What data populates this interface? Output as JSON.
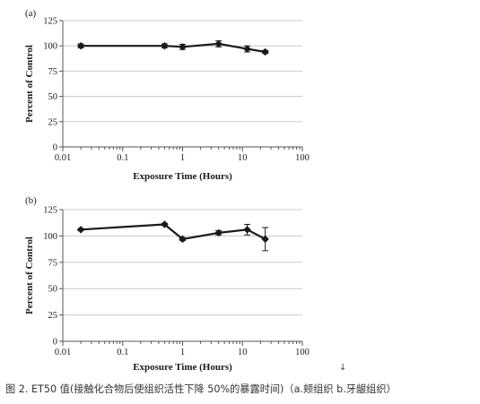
{
  "charts": [
    {
      "panel_label": "(a)",
      "chart_data": {
        "type": "line",
        "xscale": "log",
        "xlim": [
          0.01,
          100
        ],
        "ylim": [
          0,
          125
        ],
        "xticks": [
          "0.01",
          "0.1",
          "1",
          "10",
          "100"
        ],
        "yticks": [
          "0",
          "25",
          "50",
          "75",
          "100",
          "125"
        ],
        "xlabel": "Exposure Time (Hours)",
        "ylabel": "Percent of Control",
        "grid": "horizontal",
        "series": [
          {
            "x": [
              0.02,
              0.5,
              1,
              4,
              12,
              24
            ],
            "y": [
              100,
              100,
              99,
              102,
              97,
              94
            ],
            "err": [
              2,
              2,
              2.5,
              3,
              3,
              1.5
            ]
          }
        ]
      }
    },
    {
      "panel_label": "(b)",
      "chart_data": {
        "type": "line",
        "xscale": "log",
        "xlim": [
          0.01,
          100
        ],
        "ylim": [
          0,
          125
        ],
        "xticks": [
          "0.01",
          "0.1",
          "1",
          "10",
          "100"
        ],
        "yticks": [
          "0",
          "25",
          "50",
          "75",
          "100",
          "125"
        ],
        "xlabel": "Exposure Time (Hours)",
        "ylabel": "Percent of Control",
        "grid": "horizontal",
        "series": [
          {
            "x": [
              0.02,
              0.5,
              1,
              4,
              12,
              24
            ],
            "y": [
              106,
              111,
              97,
              103,
              106,
              97
            ],
            "err": [
              1,
              1,
              1.5,
              2,
              5,
              11
            ]
          }
        ]
      }
    }
  ],
  "caption": "图 2. ET50 值(接触化合物后使组织活性下降 50%的暴露时间)（a.颊组织 b.牙龈组织）",
  "arrow": "↓",
  "colors": {
    "line": "#1a1a1a",
    "grid": "#c8c8c8",
    "axis": "#555555"
  }
}
